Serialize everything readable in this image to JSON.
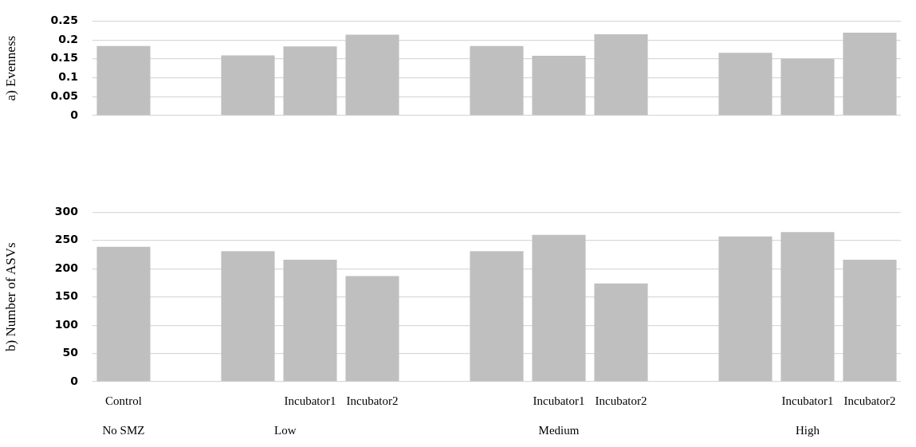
{
  "chart_data": [
    {
      "type": "bar",
      "ylabel": "a) Evenness",
      "categories": [
        null,
        null,
        null,
        null,
        null,
        null,
        null,
        null,
        null,
        null,
        null,
        null,
        null
      ],
      "values": [
        0.184,
        null,
        0.159,
        0.183,
        0.214,
        null,
        0.184,
        0.158,
        0.215,
        null,
        0.166,
        0.15,
        0.219
      ],
      "color": "#bfbfbf",
      "ylim": [
        0,
        0.25
      ],
      "yticks": [
        0,
        0.05,
        0.1,
        0.15,
        0.2,
        0.25
      ],
      "grid": "y",
      "tick_labels": "y"
    },
    {
      "type": "bar",
      "ylabel": "b) Number of ASVs",
      "categories": [
        "Control",
        null,
        null,
        "Incubator1",
        "Incubator2",
        null,
        null,
        "Incubator1",
        "Incubator2",
        null,
        null,
        "Incubator1",
        "Incubator2"
      ],
      "values": [
        239,
        null,
        231,
        216,
        187,
        null,
        231,
        260,
        174,
        null,
        257,
        265,
        216
      ],
      "color": "#bfbfbf",
      "ylim": [
        0,
        300
      ],
      "yticks": [
        0,
        50,
        100,
        150,
        200,
        250,
        300
      ],
      "grid": "y",
      "annotations": [
        "No SMZ",
        "Low",
        "Medium",
        "High"
      ]
    }
  ]
}
